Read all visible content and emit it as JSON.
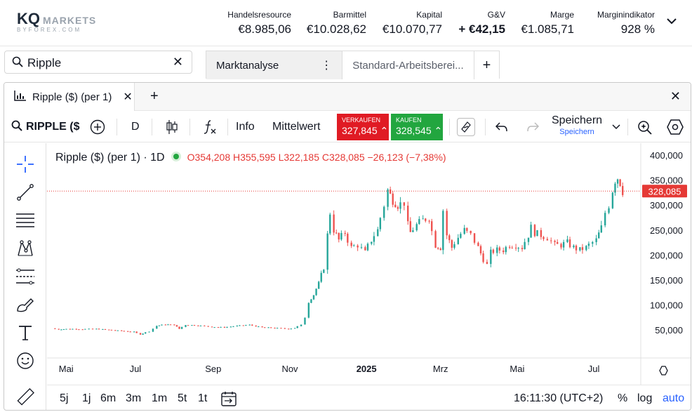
{
  "brand": {
    "name": "KQ",
    "markets": "MARKETS",
    "sub": "BYFOREX.COM"
  },
  "account": {
    "stats": [
      {
        "label": "Handelsresource",
        "value": "€8.985,06"
      },
      {
        "label": "Barmittel",
        "value": "€10.028,62"
      },
      {
        "label": "Kapital",
        "value": "€10.070,77"
      },
      {
        "label": "G&V",
        "value": "+ €42,15"
      },
      {
        "label": "Marge",
        "value": "€1.085,71"
      },
      {
        "label": "Marginindikator",
        "value": "928 %"
      }
    ]
  },
  "search": {
    "value": "Ripple",
    "clear": "✕"
  },
  "workspace_tabs": [
    {
      "label": "Marktanalyse",
      "menu": "⋮"
    },
    {
      "label": "Standard-Arbeitsberei..."
    },
    {
      "label": "+"
    }
  ],
  "panel": {
    "tab_label": "Ripple ($) (per 1)",
    "tab_close": "✕",
    "add": "+",
    "close": "✕"
  },
  "toolbar": {
    "symbol": "RIPPLE ($",
    "interval": "D",
    "info": "Info",
    "indicator": "Mittelwert",
    "sell_label": "VERKAUFEN",
    "sell_price": "327,845",
    "buy_label": "KAUFEN",
    "buy_price": "328,545",
    "save_label": "Speichern",
    "save_sub": "Speichern"
  },
  "chart_legend": {
    "name": "Ripple ($) (per 1) · 1D",
    "ohlc": "O354,208  H355,595  L322,185  C328,085  −26,123 (−7,38%)"
  },
  "chart_data": {
    "type": "candlestick",
    "last_price": 328085,
    "last_price_label": "328,085",
    "ylim": [
      0,
      400000
    ],
    "y_ticks": [
      50000,
      100000,
      150000,
      200000,
      250000,
      300000,
      350000,
      400000
    ],
    "y_tick_labels": [
      "50,000",
      "100,000",
      "150,000",
      "200,000",
      "250,000",
      "300,000",
      "350,000",
      "400,000"
    ],
    "x_tick_labels": [
      "Mai",
      "Jul",
      "Sep",
      "Nov",
      "2025",
      "Mrz",
      "Mai",
      "Jul"
    ],
    "x_range": [
      "2024-04-25",
      "2025-07-25"
    ],
    "x_tick_dates": [
      "2024-05-01",
      "2024-07-01",
      "2024-09-01",
      "2024-11-01",
      "2025-01-01",
      "2025-03-01",
      "2025-05-01",
      "2025-07-01"
    ],
    "closes": [
      [
        "2024-04-25",
        53000
      ],
      [
        "2024-05-01",
        51000
      ],
      [
        "2024-05-10",
        52000
      ],
      [
        "2024-05-20",
        51500
      ],
      [
        "2024-05-31",
        52000
      ],
      [
        "2024-06-10",
        50000
      ],
      [
        "2024-06-20",
        48000
      ],
      [
        "2024-06-30",
        46000
      ],
      [
        "2024-07-05",
        41000
      ],
      [
        "2024-07-12",
        47000
      ],
      [
        "2024-07-18",
        58000
      ],
      [
        "2024-07-25",
        61000
      ],
      [
        "2024-08-01",
        60000
      ],
      [
        "2024-08-05",
        52000
      ],
      [
        "2024-08-10",
        60000
      ],
      [
        "2024-08-20",
        59000
      ],
      [
        "2024-08-31",
        56000
      ],
      [
        "2024-09-10",
        55000
      ],
      [
        "2024-09-20",
        58000
      ],
      [
        "2024-09-30",
        60000
      ],
      [
        "2024-10-10",
        55000
      ],
      [
        "2024-10-20",
        54000
      ],
      [
        "2024-10-31",
        52000
      ],
      [
        "2024-11-05",
        54000
      ],
      [
        "2024-11-10",
        60000
      ],
      [
        "2024-11-13",
        75000
      ],
      [
        "2024-11-16",
        105000
      ],
      [
        "2024-11-20",
        120000
      ],
      [
        "2024-11-24",
        145000
      ],
      [
        "2024-11-28",
        175000
      ],
      [
        "2024-12-01",
        240000
      ],
      [
        "2024-12-03",
        285000
      ],
      [
        "2024-12-06",
        250000
      ],
      [
        "2024-12-10",
        230000
      ],
      [
        "2024-12-15",
        245000
      ],
      [
        "2024-12-20",
        215000
      ],
      [
        "2024-12-25",
        220000
      ],
      [
        "2024-12-31",
        205000
      ],
      [
        "2025-01-05",
        230000
      ],
      [
        "2025-01-10",
        250000
      ],
      [
        "2025-01-15",
        300000
      ],
      [
        "2025-01-18",
        330000
      ],
      [
        "2025-01-22",
        310000
      ],
      [
        "2025-01-26",
        300000
      ],
      [
        "2025-01-31",
        305000
      ],
      [
        "2025-02-03",
        260000
      ],
      [
        "2025-02-05",
        245000
      ],
      [
        "2025-02-10",
        260000
      ],
      [
        "2025-02-15",
        270000
      ],
      [
        "2025-02-20",
        275000
      ],
      [
        "2025-02-25",
        220000
      ],
      [
        "2025-03-01",
        215000
      ],
      [
        "2025-03-03",
        290000
      ],
      [
        "2025-03-06",
        240000
      ],
      [
        "2025-03-10",
        215000
      ],
      [
        "2025-03-15",
        235000
      ],
      [
        "2025-03-20",
        250000
      ],
      [
        "2025-03-25",
        240000
      ],
      [
        "2025-03-31",
        215000
      ],
      [
        "2025-04-07",
        180000
      ],
      [
        "2025-04-10",
        205000
      ],
      [
        "2025-04-15",
        210000
      ],
      [
        "2025-04-20",
        210000
      ],
      [
        "2025-04-25",
        220000
      ],
      [
        "2025-04-30",
        220000
      ],
      [
        "2025-05-05",
        215000
      ],
      [
        "2025-05-10",
        240000
      ],
      [
        "2025-05-12",
        255000
      ],
      [
        "2025-05-15",
        245000
      ],
      [
        "2025-05-20",
        240000
      ],
      [
        "2025-05-25",
        235000
      ],
      [
        "2025-05-31",
        220000
      ],
      [
        "2025-06-05",
        220000
      ],
      [
        "2025-06-10",
        225000
      ],
      [
        "2025-06-15",
        215000
      ],
      [
        "2025-06-20",
        210000
      ],
      [
        "2025-06-25",
        215000
      ],
      [
        "2025-06-30",
        225000
      ],
      [
        "2025-07-03",
        230000
      ],
      [
        "2025-07-07",
        255000
      ],
      [
        "2025-07-10",
        285000
      ],
      [
        "2025-07-13",
        300000
      ],
      [
        "2025-07-16",
        330000
      ],
      [
        "2025-07-18",
        350000
      ],
      [
        "2025-07-20",
        355000
      ],
      [
        "2025-07-22",
        345000
      ],
      [
        "2025-07-24",
        328085
      ]
    ]
  },
  "bottombar": {
    "ranges": [
      "5j",
      "1j",
      "6m",
      "3m",
      "1m",
      "5t",
      "1t"
    ],
    "time": "16:11:30 (UTC+2)",
    "percent": "%",
    "log": "log",
    "auto": "auto"
  },
  "colors": {
    "up": "#26a69a",
    "down": "#ef5350",
    "sell": "#e01b24",
    "buy": "#22a63f",
    "price_line": "#e53935"
  }
}
